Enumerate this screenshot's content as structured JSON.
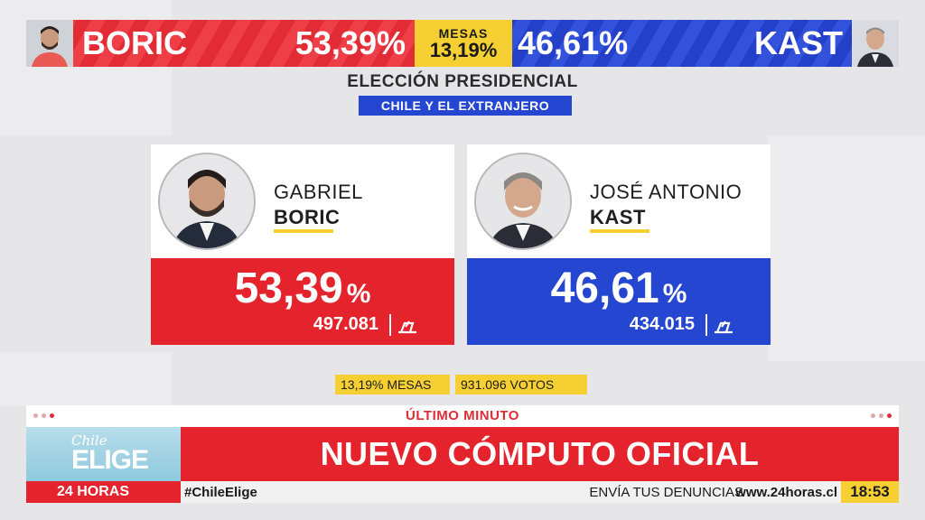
{
  "topbar": {
    "left_name": "BORIC",
    "left_pct": "53,39%",
    "mesas_label": "MESAS",
    "mesas_pct": "13,19%",
    "right_pct": "46,61%",
    "right_name": "KAST"
  },
  "title": "ELECCIÓN PRESIDENCIAL",
  "subtitle": "CHILE Y EL EXTRANJERO",
  "candidates": [
    {
      "first_name": "GABRIEL",
      "last_name": "BORIC",
      "pct": "53,39",
      "pct_sign": "%",
      "votes": "497.081",
      "color": "#e5232c"
    },
    {
      "first_name": "JOSÉ ANTONIO",
      "last_name": "KAST",
      "pct": "46,61",
      "pct_sign": "%",
      "votes": "434.015",
      "color": "#2446d0"
    }
  ],
  "stats": {
    "mesas": "13,19% MESAS",
    "votos": "931.096 VOTOS"
  },
  "ticker": {
    "flag": "ÚLTIMO MINUTO",
    "logo_top": "Chile",
    "logo_main": "ELIGE",
    "headline": "NUEVO CÓMPUTO OFICIAL",
    "brand": "24 HORAS",
    "hashtag": "#ChileElige",
    "denuncias": "ENVÍA TUS DENUNCIAS",
    "website": "www.24horas.cl",
    "time": "18:53"
  },
  "colors": {
    "red": "#e5232c",
    "blue": "#2446d0",
    "yellow": "#f6d033"
  }
}
